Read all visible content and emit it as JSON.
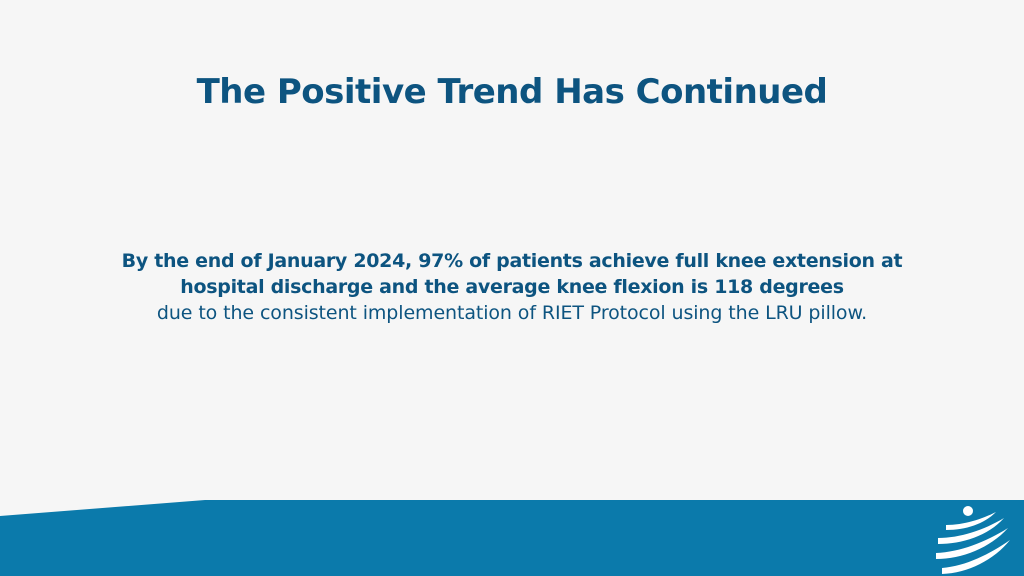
{
  "slide": {
    "title": "The Positive Trend Has Continued",
    "body": {
      "bold_line_1": "By the end of January 2024, 97% of patients achieve full knee extension at",
      "bold_line_2": "hospital discharge and the average knee flexion is 118 degrees",
      "regular_line": "due to the consistent implementation of RIET Protocol using the LRU pillow."
    }
  },
  "colors": {
    "background": "#f6f6f6",
    "title": "#0d5480",
    "footer_band": "#0b7aab",
    "logo": "#ffffff"
  },
  "icons": {
    "logo": "swoosh-figure-logo"
  }
}
